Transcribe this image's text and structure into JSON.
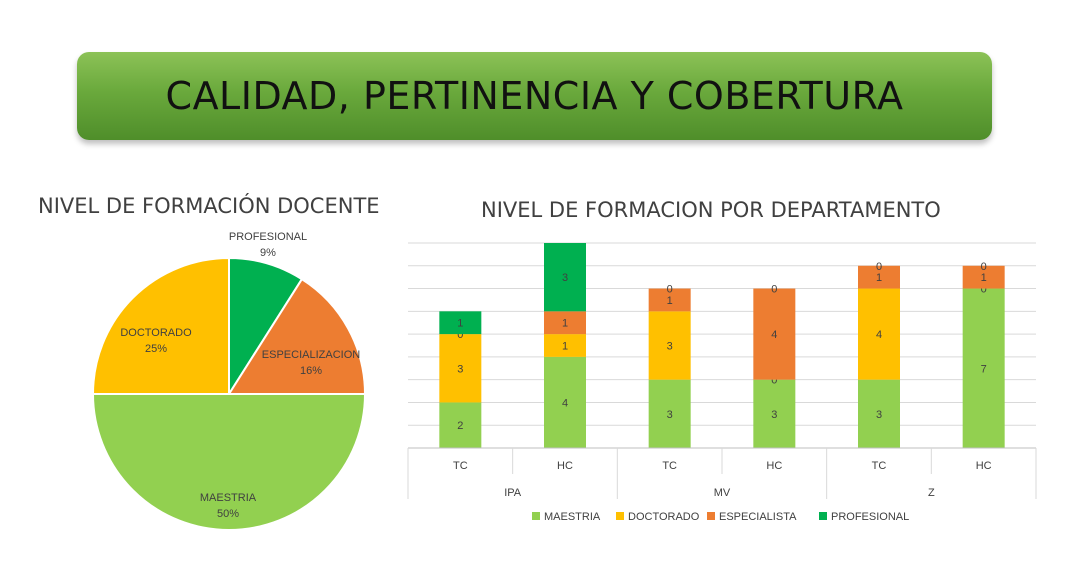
{
  "header": {
    "title": "CALIDAD, PERTINENCIA Y COBERTURA"
  },
  "chart_data": [
    {
      "type": "pie",
      "title": "NIVEL DE FORMACIÓN DOCENTE",
      "slices": [
        {
          "label": "PROFESIONAL",
          "value": 9,
          "display": "9%",
          "color": "#00b050"
        },
        {
          "label": "ESPECIALIZACION",
          "value": 16,
          "display": "16%",
          "color": "#ed7d31"
        },
        {
          "label": "MAESTRIA",
          "value": 50,
          "display": "50%",
          "color": "#92d050"
        },
        {
          "label": "DOCTORADO",
          "value": 25,
          "display": "25%",
          "color": "#ffc000"
        }
      ]
    },
    {
      "type": "bar",
      "stacked": true,
      "title": "NIVEL DE FORMACION POR DEPARTAMENTO",
      "categories": [
        "TC",
        "HC",
        "TC",
        "HC",
        "TC",
        "HC"
      ],
      "groups": [
        {
          "label": "IPA",
          "span": 2
        },
        {
          "label": "MV",
          "span": 2
        },
        {
          "label": "Z",
          "span": 2
        }
      ],
      "series": [
        {
          "name": "MAESTRIA",
          "color": "#92d050",
          "values": [
            2,
            4,
            3,
            3,
            3,
            7
          ]
        },
        {
          "name": "DOCTORADO",
          "color": "#ffc000",
          "values": [
            3,
            1,
            3,
            0,
            4,
            0
          ]
        },
        {
          "name": "ESPECIALISTA",
          "color": "#ed7d31",
          "values": [
            0,
            1,
            1,
            4,
            1,
            1
          ]
        },
        {
          "name": "PROFESIONAL",
          "color": "#00b050",
          "values": [
            1,
            3,
            0,
            0,
            0,
            0
          ]
        }
      ],
      "ylim": [
        0,
        9
      ],
      "grid": true,
      "legend": "bottom"
    }
  ]
}
